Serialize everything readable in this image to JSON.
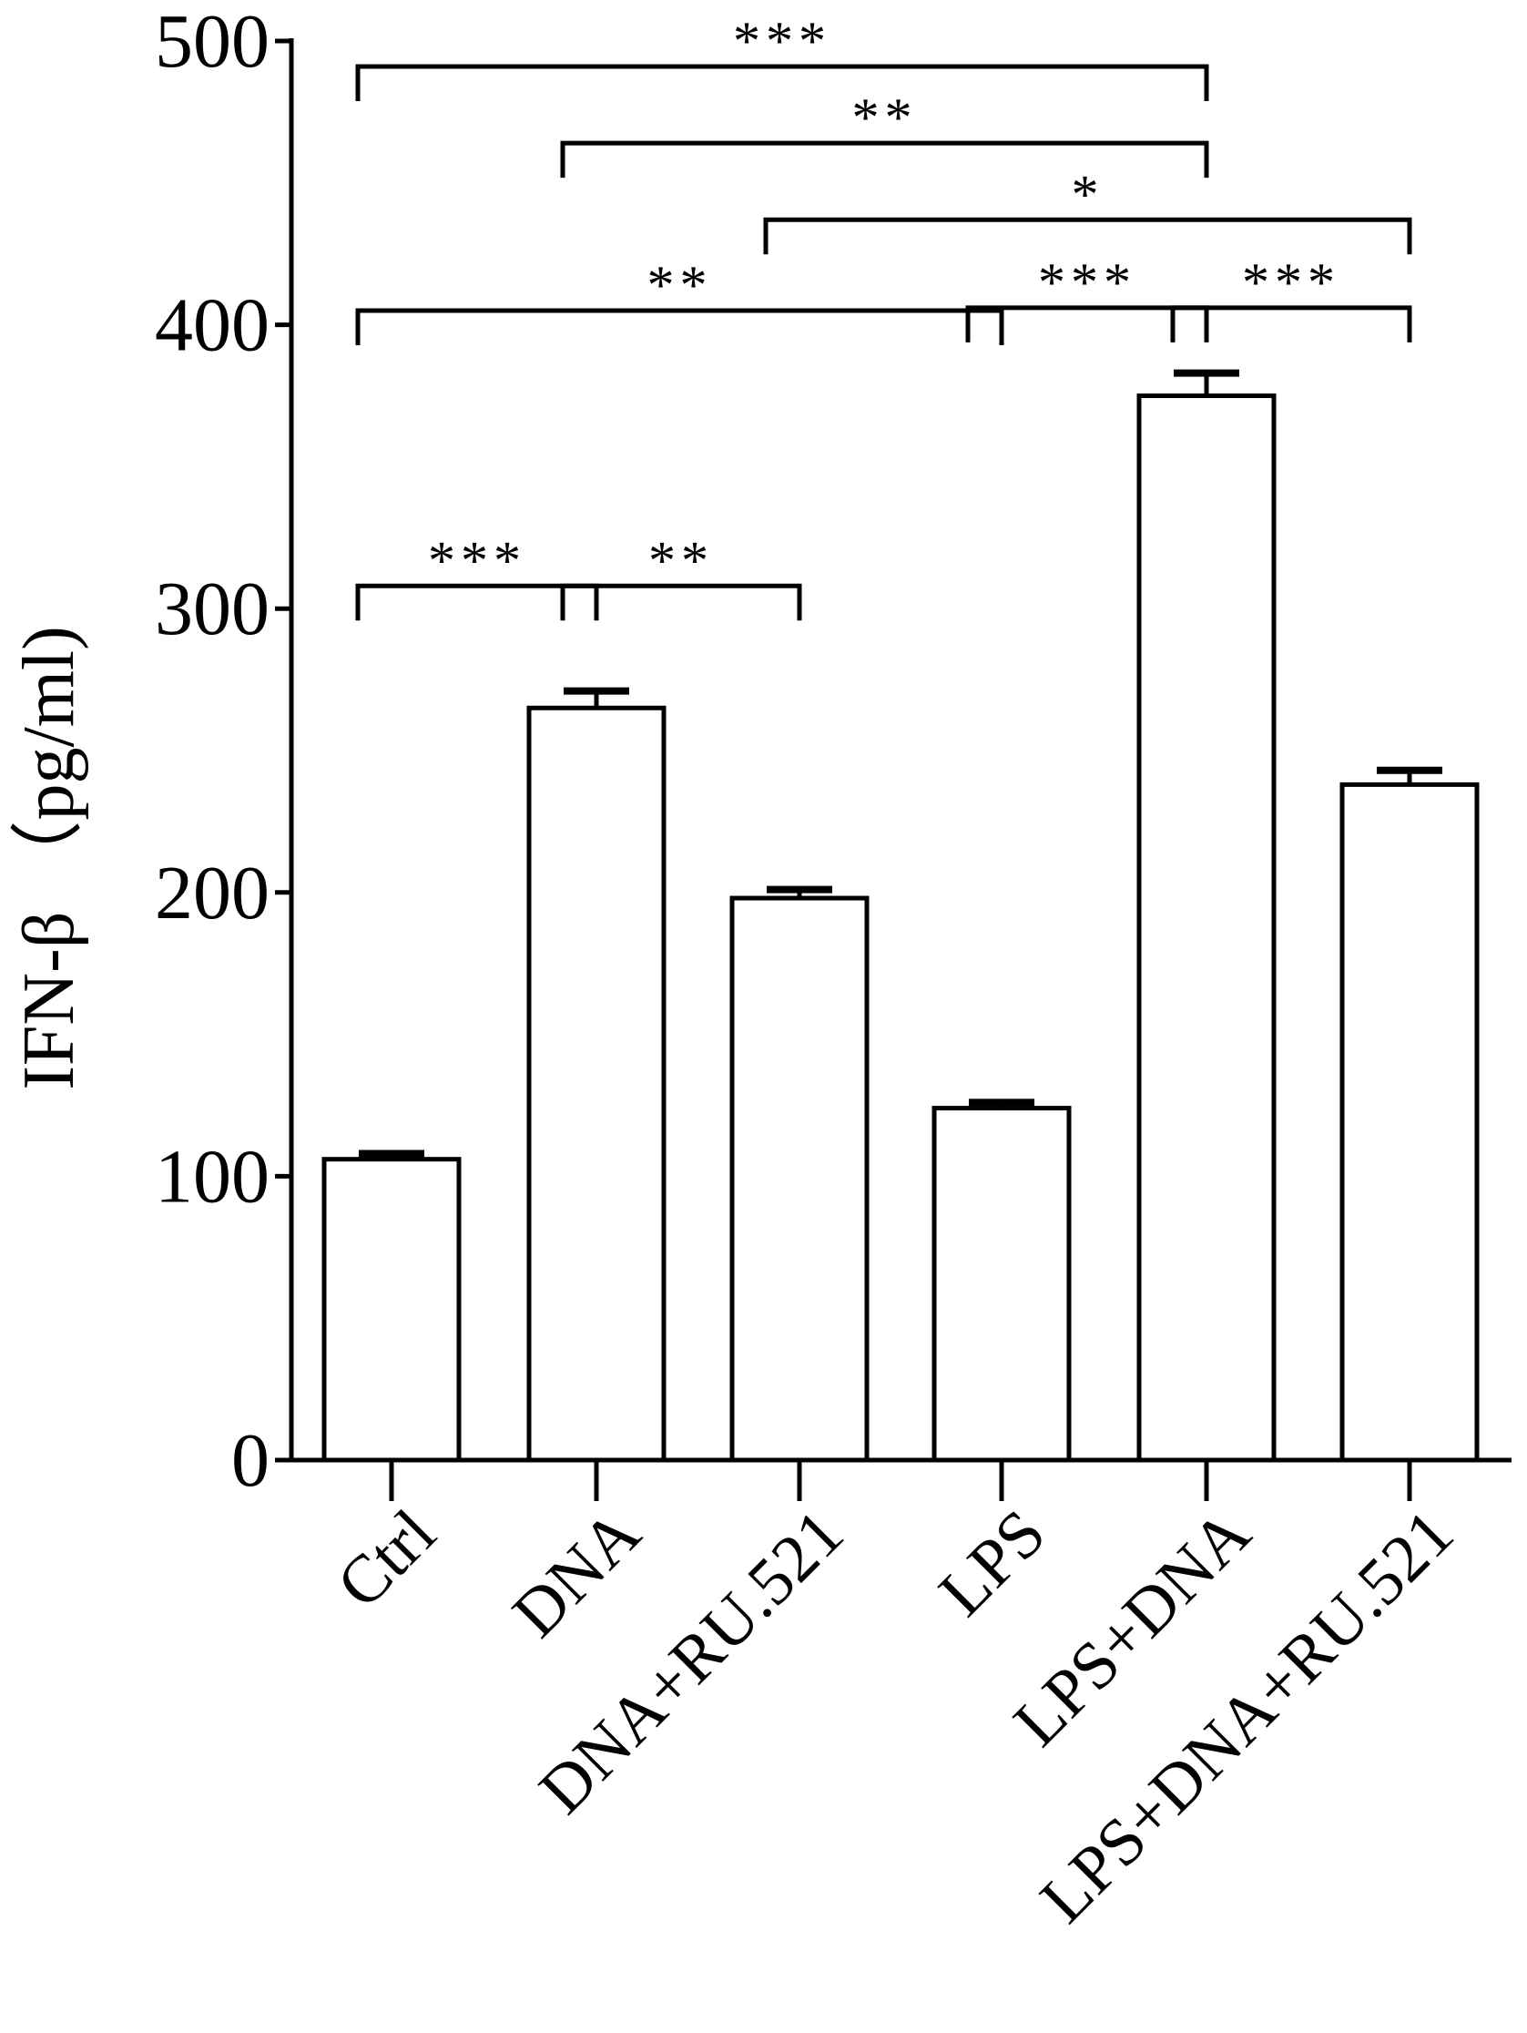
{
  "chart_data": {
    "type": "bar",
    "categories": [
      "Ctrl",
      "DNA",
      "DNA+RU.521",
      "LPS",
      "LPS+DNA",
      "LPS+DNA+RU.521"
    ],
    "values": [
      106,
      265,
      198,
      124,
      375,
      238
    ],
    "errors": [
      2,
      6,
      3,
      2,
      8,
      5
    ],
    "title": "",
    "xlabel": "",
    "ylabel": "IFN-β （pg/ml)",
    "ylim": [
      0,
      500
    ],
    "yticks": [
      0,
      100,
      200,
      300,
      400,
      500
    ],
    "grid": false,
    "legend": "none",
    "bar_fill": "#ffffff",
    "bar_stroke": "#000000",
    "significance": [
      {
        "from": "Ctrl",
        "to": "LPS+DNA",
        "label": "***",
        "level": 491
      },
      {
        "from": "DNA",
        "to": "LPS+DNA",
        "label": "**",
        "level": 464
      },
      {
        "from": "DNA+RU.521",
        "to": "LPS+DNA+RU.521",
        "label": "*",
        "level": 437
      },
      {
        "from": "Ctrl",
        "to": "LPS",
        "label": "**",
        "level": 405
      },
      {
        "from": "LPS",
        "to": "LPS+DNA",
        "label": "***",
        "level": 406
      },
      {
        "from": "LPS+DNA",
        "to": "LPS+DNA+RU.521",
        "label": "***",
        "level": 406
      },
      {
        "from": "Ctrl",
        "to": "DNA",
        "label": "***",
        "level": 308
      },
      {
        "from": "DNA",
        "to": "DNA+RU.521",
        "label": "**",
        "level": 308
      }
    ]
  }
}
